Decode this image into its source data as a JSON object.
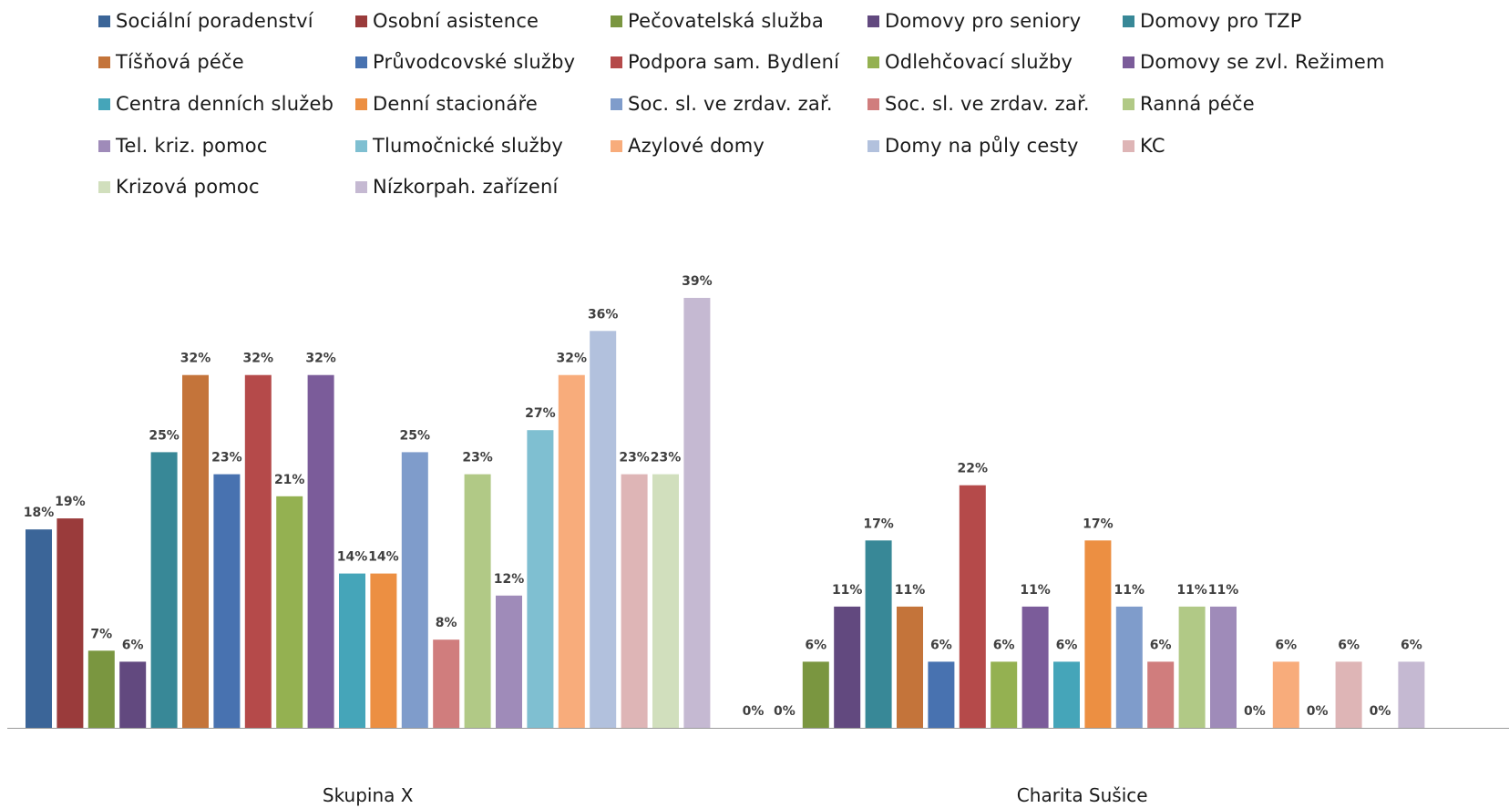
{
  "chart_data": {
    "type": "bar",
    "categories": [
      "Skupina X",
      "Charita Sušice"
    ],
    "value_format": "percent",
    "ylim": [
      0,
      45
    ],
    "grid": false,
    "legend_position": "top",
    "series": [
      {
        "name": "Sociální poradenství",
        "color": "#3b6598",
        "values": [
          18,
          0
        ]
      },
      {
        "name": "Osobní asistence",
        "color": "#9a3b3b",
        "values": [
          19,
          0
        ]
      },
      {
        "name": "Pečovatelská služba",
        "color": "#7a9640",
        "values": [
          7,
          6
        ]
      },
      {
        "name": "Domovy pro seniory",
        "color": "#62497f",
        "values": [
          6,
          11
        ]
      },
      {
        "name": "Domovy pro TZP",
        "color": "#388897",
        "values": [
          25,
          17
        ]
      },
      {
        "name": "Tíšňová péče",
        "color": "#c4743a",
        "values": [
          32,
          11
        ]
      },
      {
        "name": "Průvodcovské služby",
        "color": "#4872b0",
        "values": [
          23,
          6
        ]
      },
      {
        "name": "Podpora sam. Bydlení",
        "color": "#b54a4a",
        "values": [
          32,
          22
        ]
      },
      {
        "name": "Odlehčovací služby",
        "color": "#94b151",
        "values": [
          21,
          6
        ]
      },
      {
        "name": "Domovy se zvl. Režimem",
        "color": "#7b5c9a",
        "values": [
          32,
          11
        ]
      },
      {
        "name": "Centra denních služeb",
        "color": "#45a5b9",
        "values": [
          14,
          6
        ]
      },
      {
        "name": "Denní stacionáře",
        "color": "#ec8f42",
        "values": [
          14,
          17
        ]
      },
      {
        "name": "Soc. sl. ve zrdav. zař.",
        "color": "#7f9ccb",
        "values": [
          25,
          11
        ]
      },
      {
        "name": "Soc. sl. ve zrdav. zař.",
        "color": "#d07d7d",
        "values": [
          8,
          6
        ]
      },
      {
        "name": "Ranná péče",
        "color": "#b1c986",
        "values": [
          23,
          11
        ]
      },
      {
        "name": "Tel. kriz. pomoc",
        "color": "#9f8bb9",
        "values": [
          12,
          11
        ]
      },
      {
        "name": "Tlumočnické služby",
        "color": "#7fbfd1",
        "values": [
          27,
          0
        ]
      },
      {
        "name": "Azylové domy",
        "color": "#f8ac7b",
        "values": [
          32,
          6
        ]
      },
      {
        "name": "Domy na půly cesty",
        "color": "#b2c1dd",
        "values": [
          36,
          0
        ]
      },
      {
        "name": "KC",
        "color": "#deb5b6",
        "values": [
          23,
          6
        ]
      },
      {
        "name": "Krizová pomoc",
        "color": "#d1dfbd",
        "values": [
          23,
          0
        ]
      },
      {
        "name": "Nízkorpah. zařízení",
        "color": "#c5b9d2",
        "values": [
          39,
          6
        ]
      }
    ]
  }
}
